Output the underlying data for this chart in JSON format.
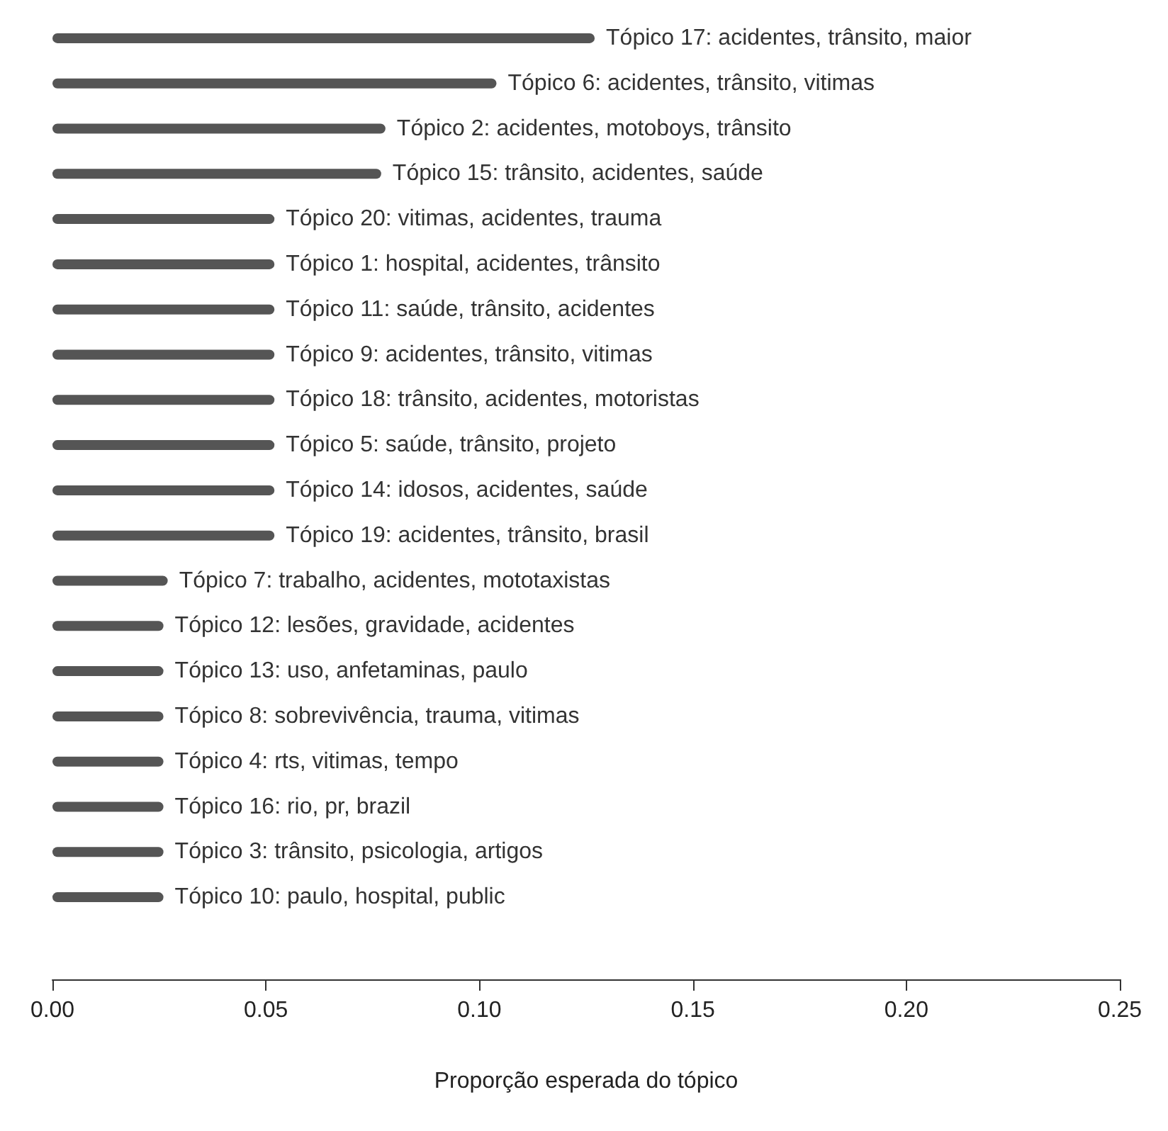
{
  "chart_data": {
    "type": "bar",
    "orientation": "horizontal",
    "xlabel": "Proporção esperada do tópico",
    "categories": [
      "Tópico 17: acidentes, trânsito, maior",
      "Tópico 6: acidentes, trânsito, vitimas",
      "Tópico 2: acidentes, motoboys, trânsito",
      "Tópico 15: trânsito, acidentes, saúde",
      "Tópico 20: vitimas, acidentes, trauma",
      "Tópico 1: hospital, acidentes, trânsito",
      "Tópico 11: saúde, trânsito, acidentes",
      "Tópico 9: acidentes, trânsito, vitimas",
      "Tópico 18: trânsito, acidentes, motoristas",
      "Tópico 5: saúde, trânsito, projeto",
      "Tópico 14: idosos, acidentes, saúde",
      "Tópico 19: acidentes, trânsito, brasil",
      "Tópico 7: trabalho, acidentes, mototaxistas",
      "Tópico 12: lesões, gravidade, acidentes",
      "Tópico 13: uso, anfetaminas, paulo",
      "Tópico 8: sobrevivência, trauma, vitimas",
      "Tópico 4: rts, vitimas, tempo",
      "Tópico 16: rio, pr, brazil",
      "Tópico 3: trânsito, psicologia, artigos",
      "Tópico 10: paulo, hospital, public"
    ],
    "values": [
      0.127,
      0.104,
      0.078,
      0.077,
      0.052,
      0.052,
      0.052,
      0.052,
      0.052,
      0.052,
      0.052,
      0.052,
      0.027,
      0.026,
      0.026,
      0.026,
      0.026,
      0.026,
      0.026,
      0.026
    ],
    "color": "#555555",
    "xlim": [
      0,
      0.25
    ],
    "xticks": [
      {
        "value": 0,
        "label": "0.00"
      },
      {
        "value": 0.05,
        "label": "0.05"
      },
      {
        "value": 0.1,
        "label": "0.10"
      },
      {
        "value": 0.15,
        "label": "0.15"
      },
      {
        "value": 0.2,
        "label": "0.20"
      },
      {
        "value": 0.25,
        "label": "0.25"
      }
    ]
  }
}
